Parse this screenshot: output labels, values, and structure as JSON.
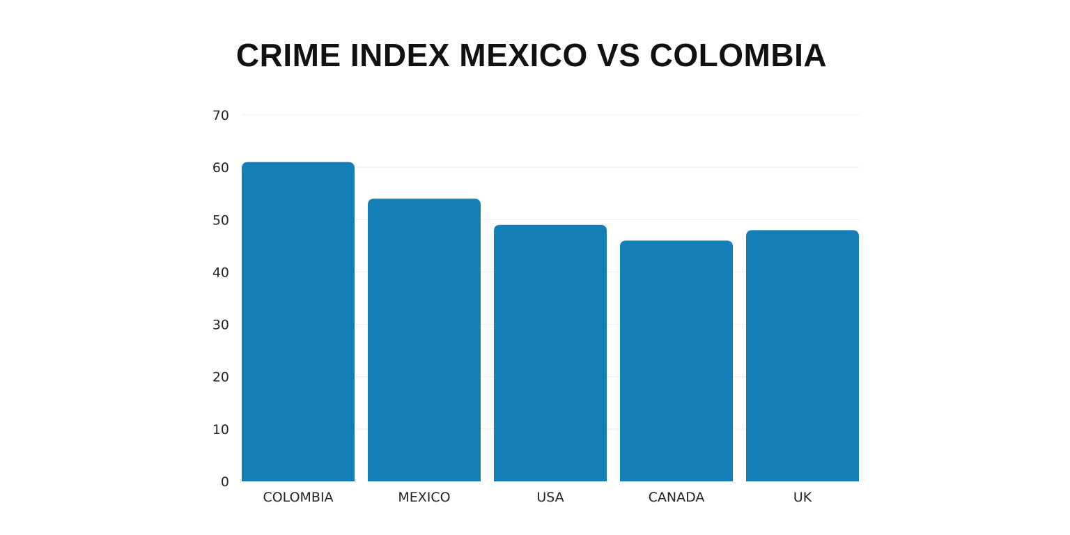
{
  "chart_data": {
    "type": "bar",
    "title": "CRIME INDEX MEXICO VS COLOMBIA",
    "categories": [
      "COLOMBIA",
      "MEXICO",
      "USA",
      "CANADA",
      "UK"
    ],
    "values": [
      61,
      54,
      49,
      46,
      48
    ],
    "xlabel": "",
    "ylabel": "",
    "ylim": [
      0,
      70
    ],
    "yticks": [
      0,
      10,
      20,
      30,
      40,
      50,
      60,
      70
    ],
    "grid": true,
    "bar_color": "#147EB6"
  }
}
